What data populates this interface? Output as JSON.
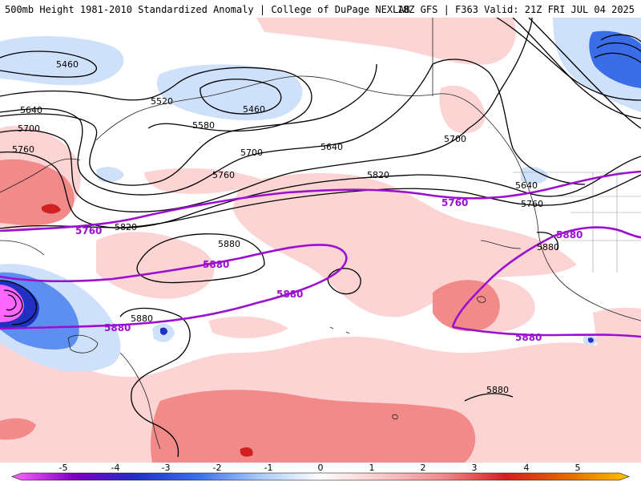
{
  "header": {
    "title_left": "500mb Height 1981-2010 Standardized Anomaly | College of DuPage NEXLAB",
    "title_right": "18Z GFS | F363 Valid: 21Z FRI JUL 04 2025"
  },
  "map": {
    "height_labels": [
      "5460",
      "5460",
      "5520",
      "5580",
      "5640",
      "5640",
      "5700",
      "5700",
      "5700",
      "5760",
      "5760",
      "5820",
      "5820",
      "5880",
      "5880",
      "5880",
      "5880",
      "5640",
      "5760"
    ],
    "climo_labels": [
      "5760",
      "5760",
      "5880",
      "5880",
      "5880",
      "5880",
      "5880"
    ]
  },
  "colorbar": {
    "ticks": [
      "-5",
      "-4",
      "-3",
      "-2",
      "-1",
      "0",
      "1",
      "2",
      "3",
      "4",
      "5"
    ],
    "colors": [
      "#ff66ff",
      "#8000c0",
      "#2030c0",
      "#3a6ee8",
      "#a8c8f8",
      "#ffffff",
      "#f8c8c8",
      "#f08a8a",
      "#d02020",
      "#e06a00",
      "#ffc000"
    ]
  },
  "colors": {
    "climo_contour": "#9b0fd0",
    "height_contour": "#000000",
    "pos_anom_1": "#fcd4d4",
    "pos_anom_2": "#f28a8a",
    "neg_anom_1": "#cfe0fb"
  }
}
